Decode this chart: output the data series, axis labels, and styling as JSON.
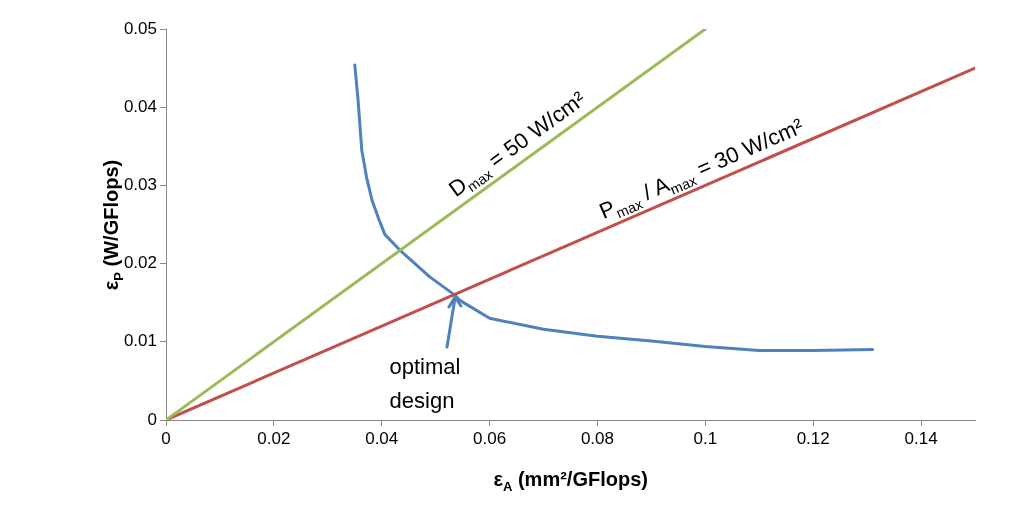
{
  "chart_data": {
    "type": "line",
    "xlabel": "ε$_{A}$ (mm²/GFlops)",
    "ylabel": "ε$_{P}$ (W/GFlops)",
    "xlim": [
      0,
      0.15
    ],
    "xticks": [
      0,
      0.02,
      0.04,
      0.06,
      0.08,
      0.1,
      0.12,
      0.14
    ],
    "ylim": [
      0,
      0.05
    ],
    "yticks": [
      0,
      0.01,
      0.02,
      0.03,
      0.04,
      0.05
    ],
    "grid": false,
    "legend": false,
    "marker": "none",
    "line_style": "solid",
    "series": [
      {
        "color": "#9bbb59",
        "x": [
          0,
          0.1
        ],
        "values": [
          0,
          0.05
        ]
      },
      {
        "color": "#c0504d",
        "x": [
          0,
          0.15
        ],
        "values": [
          0,
          0.045
        ]
      },
      {
        "color": "#4f81bd",
        "x": [
          0.035,
          0.0356,
          0.0363,
          0.0372,
          0.0382,
          0.0395,
          0.0406,
          0.0434,
          0.0489,
          0.0535,
          0.0545,
          0.06,
          0.07,
          0.08,
          0.09,
          0.1,
          0.11,
          0.12,
          0.131
        ],
        "values": [
          0.0454,
          0.041,
          0.0345,
          0.031,
          0.0281,
          0.0256,
          0.0237,
          0.0217,
          0.0183,
          0.016,
          0.0153,
          0.013,
          0.0116,
          0.0107,
          0.0101,
          0.0094,
          0.0089,
          0.0089,
          0.009
        ]
      }
    ],
    "annotations": [
      "D$_{max}$ = 50 W/cm²",
      "P$_{max}$ / A$_{max}$ = 30 W/cm²",
      {
        "text": "optimal design",
        "x": 0.0535,
        "y": 0.016
      }
    ]
  }
}
